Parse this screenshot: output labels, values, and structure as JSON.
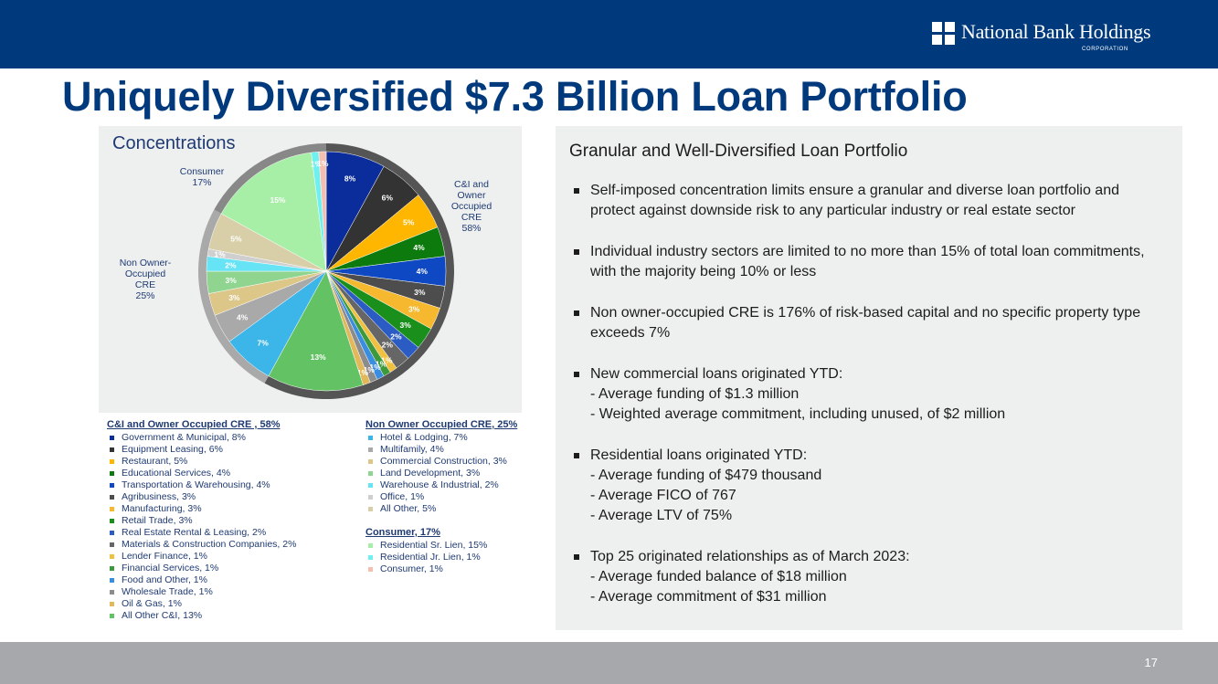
{
  "header": {
    "logo_text": "National Bank Holdings",
    "logo_subtext": "CORPORATION"
  },
  "title": "Uniquely Diversified $7.3 Billion Loan Portfolio",
  "chart_panel": {
    "heading": "Concentrations"
  },
  "chart_data": {
    "type": "pie",
    "groups": [
      {
        "label": "C&I and Owner Occupied CRE 58%",
        "value": 58
      },
      {
        "label": "Non Owner-Occupied CRE 25%",
        "value": 25
      },
      {
        "label": "Consumer 17%",
        "value": 17
      }
    ],
    "slices": [
      {
        "name": "Government & Municipal",
        "value": 8,
        "label": "8%",
        "color": "#0b2d9b"
      },
      {
        "name": "Equipment Leasing",
        "value": 6,
        "label": "6%",
        "color": "#333333"
      },
      {
        "name": "Restaurant",
        "value": 5,
        "label": "5%",
        "color": "#ffb600"
      },
      {
        "name": "Educational Services",
        "value": 4,
        "label": "4%",
        "color": "#0d7a0d"
      },
      {
        "name": "Transportation & Warehousing",
        "value": 4,
        "label": "4%",
        "color": "#0f48c3"
      },
      {
        "name": "Agribusiness",
        "value": 3,
        "label": "3%",
        "color": "#4d4d4d"
      },
      {
        "name": "Manufacturing",
        "value": 3,
        "label": "3%",
        "color": "#f5b82e"
      },
      {
        "name": "Retail Trade",
        "value": 3,
        "label": "3%",
        "color": "#1b8f1b"
      },
      {
        "name": "Real Estate Rental & Leasing",
        "value": 2,
        "label": "2%",
        "color": "#2a5cc4"
      },
      {
        "name": "Materials & Construction Companies",
        "value": 2,
        "label": "2%",
        "color": "#666666"
      },
      {
        "name": "Lender Finance",
        "value": 1,
        "label": "1%",
        "color": "#f0c040"
      },
      {
        "name": "Financial Services",
        "value": 1,
        "label": "1%",
        "color": "#3c9a3c"
      },
      {
        "name": "Food and Other",
        "value": 1,
        "label": "1%",
        "color": "#3b8de0"
      },
      {
        "name": "Wholesale Trade",
        "value": 1,
        "label": "1%",
        "color": "#8c8c8c"
      },
      {
        "name": "Oil & Gas",
        "value": 1,
        "label": "1%",
        "color": "#e2b85a"
      },
      {
        "name": "All Other C&I",
        "value": 13,
        "label": "13%",
        "color": "#63c263"
      },
      {
        "name": "Hotel & Lodging",
        "value": 7,
        "label": "7%",
        "color": "#3cb5e8"
      },
      {
        "name": "Multifamily",
        "value": 4,
        "label": "4%",
        "color": "#a9a9a9"
      },
      {
        "name": "Commercial Construction",
        "value": 3,
        "label": "3%",
        "color": "#dcc688"
      },
      {
        "name": "Land Development",
        "value": 3,
        "label": "3%",
        "color": "#8fd48f"
      },
      {
        "name": "Warehouse & Industrial",
        "value": 2,
        "label": "2%",
        "color": "#66e3f4"
      },
      {
        "name": "Office",
        "value": 1,
        "label": "1%",
        "color": "#cfcfcf"
      },
      {
        "name": "All Other",
        "value": 5,
        "label": "5%",
        "color": "#d8cfa8"
      },
      {
        "name": "Residential Sr. Lien",
        "value": 15,
        "label": "15%",
        "color": "#a7eea7"
      },
      {
        "name": "Residential Jr. Lien",
        "value": 1,
        "label": "1%",
        "color": "#6ff0f0"
      },
      {
        "name": "Consumer",
        "value": 1,
        "label": "1%",
        "color": "#f4bfb0"
      }
    ]
  },
  "pie_group_labels": {
    "ci": "C&I and Owner Occupied CRE 58%",
    "nooc": "Non Owner-Occupied CRE 25%",
    "consumer": "Consumer 17%"
  },
  "legend": {
    "ci": {
      "heading": "C&I and Owner Occupied CRE , 58%",
      "items": [
        {
          "label": "Government & Municipal, 8%",
          "color": "#0b2d9b"
        },
        {
          "label": "Equipment Leasing, 6%",
          "color": "#333333"
        },
        {
          "label": "Restaurant, 5%",
          "color": "#ffb600"
        },
        {
          "label": "Educational Services, 4%",
          "color": "#0d7a0d"
        },
        {
          "label": "Transportation & Warehousing, 4%",
          "color": "#0f48c3"
        },
        {
          "label": "Agribusiness, 3%",
          "color": "#4d4d4d"
        },
        {
          "label": "Manufacturing, 3%",
          "color": "#f5b82e"
        },
        {
          "label": "Retail Trade, 3%",
          "color": "#1b8f1b"
        },
        {
          "label": "Real Estate Rental & Leasing, 2%",
          "color": "#2a5cc4"
        },
        {
          "label": "Materials & Construction Companies, 2%",
          "color": "#666666"
        },
        {
          "label": "Lender Finance, 1%",
          "color": "#f0c040"
        },
        {
          "label": "Financial Services, 1%",
          "color": "#3c9a3c"
        },
        {
          "label": "Food and Other, 1%",
          "color": "#3b8de0"
        },
        {
          "label": "Wholesale Trade, 1%",
          "color": "#8c8c8c"
        },
        {
          "label": "Oil & Gas, 1%",
          "color": "#e2b85a"
        },
        {
          "label": "All Other C&I, 13%",
          "color": "#63c263"
        }
      ]
    },
    "nooc": {
      "heading": "Non Owner Occupied CRE, 25%",
      "items": [
        {
          "label": "Hotel & Lodging, 7%",
          "color": "#3cb5e8"
        },
        {
          "label": "Multifamily, 4%",
          "color": "#a9a9a9"
        },
        {
          "label": "Commercial Construction, 3%",
          "color": "#dcc688"
        },
        {
          "label": "Land Development, 3%",
          "color": "#8fd48f"
        },
        {
          "label": "Warehouse & Industrial, 2%",
          "color": "#66e3f4"
        },
        {
          "label": "Office, 1%",
          "color": "#cfcfcf"
        },
        {
          "label": "All Other, 5%",
          "color": "#d8cfa8"
        }
      ]
    },
    "consumer": {
      "heading": "Consumer, 17%",
      "items": [
        {
          "label": "Residential Sr. Lien, 15%",
          "color": "#a7eea7"
        },
        {
          "label": "Residential Jr. Lien, 1%",
          "color": "#6ff0f0"
        },
        {
          "label": "Consumer, 1%",
          "color": "#f4bfb0"
        }
      ]
    }
  },
  "right_panel": {
    "heading": "Granular and Well-Diversified Loan Portfolio",
    "bullets": [
      {
        "text": "Self-imposed concentration limits ensure a granular and diverse loan portfolio and protect against downside risk to any particular industry or real estate sector",
        "subs": []
      },
      {
        "text": "Individual industry sectors are limited to no more than 15% of total loan commitments, with the majority being 10% or less",
        "subs": []
      },
      {
        "text": "Non owner-occupied CRE is 176% of risk-based capital and no specific property type exceeds 7%",
        "subs": []
      },
      {
        "text": "New commercial loans originated YTD:",
        "subs": [
          "- Average funding of $1.3 million",
          "-  Weighted average commitment, including unused, of $2 million"
        ]
      },
      {
        "text": "Residential loans originated YTD:",
        "subs": [
          "- Average funding of $479 thousand",
          "- Average FICO of 767",
          "- Average LTV of 75%"
        ]
      },
      {
        "text": "Top 25 originated relationships as of March 2023:",
        "subs": [
          "- Average funded balance of $18 million",
          "- Average commitment of $31 million"
        ]
      }
    ]
  },
  "footer": {
    "page_number": "17"
  }
}
